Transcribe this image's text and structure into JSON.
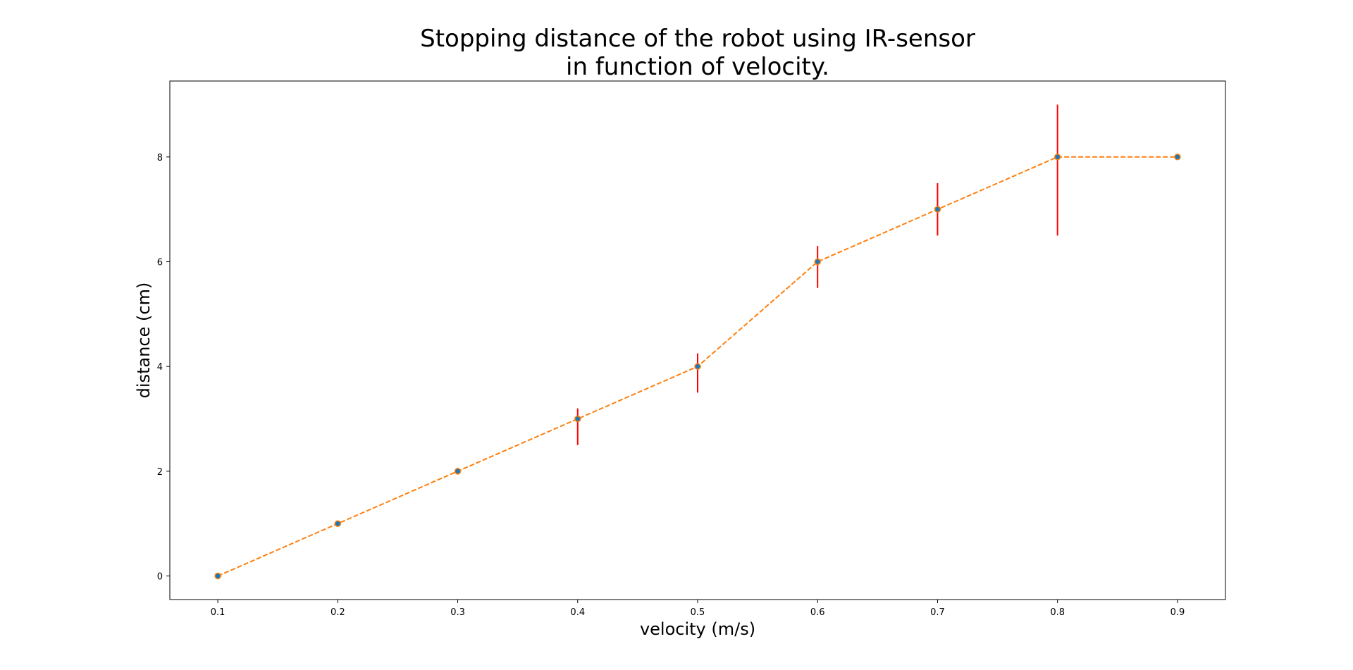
{
  "chart_data": {
    "type": "line",
    "title_lines": [
      "Stopping distance of the robot using IR-sensor",
      "in function of velocity."
    ],
    "xlabel": "velocity (m/s)",
    "ylabel": "distance (cm)",
    "xlim": [
      0.06,
      0.94
    ],
    "ylim": [
      -0.45,
      9.45
    ],
    "x_ticks": [
      0.1,
      0.2,
      0.3,
      0.4,
      0.5,
      0.6,
      0.7,
      0.8,
      0.9
    ],
    "x_tick_labels": [
      "0.1",
      "0.2",
      "0.3",
      "0.4",
      "0.5",
      "0.6",
      "0.7",
      "0.8",
      "0.9"
    ],
    "y_ticks": [
      0,
      2,
      4,
      6,
      8
    ],
    "y_tick_labels": [
      "0",
      "2",
      "4",
      "6",
      "8"
    ],
    "grid": false,
    "series": [
      {
        "x": [
          0.1,
          0.2,
          0.3,
          0.4,
          0.5,
          0.6,
          0.7,
          0.8,
          0.9
        ],
        "y": [
          0,
          1,
          2,
          3,
          4,
          6,
          7,
          8,
          8
        ],
        "error_low": [
          0,
          0,
          0,
          2.5,
          3.5,
          5.5,
          6.5,
          6.5,
          8
        ],
        "error_high": [
          0,
          0,
          0,
          3.2,
          4.25,
          6.3,
          7.5,
          9.0,
          8
        ],
        "line_color": "#ff7f0e",
        "marker_color": "#1f77b4",
        "error_color": "#ff0000",
        "line_style": "dashed"
      }
    ]
  }
}
